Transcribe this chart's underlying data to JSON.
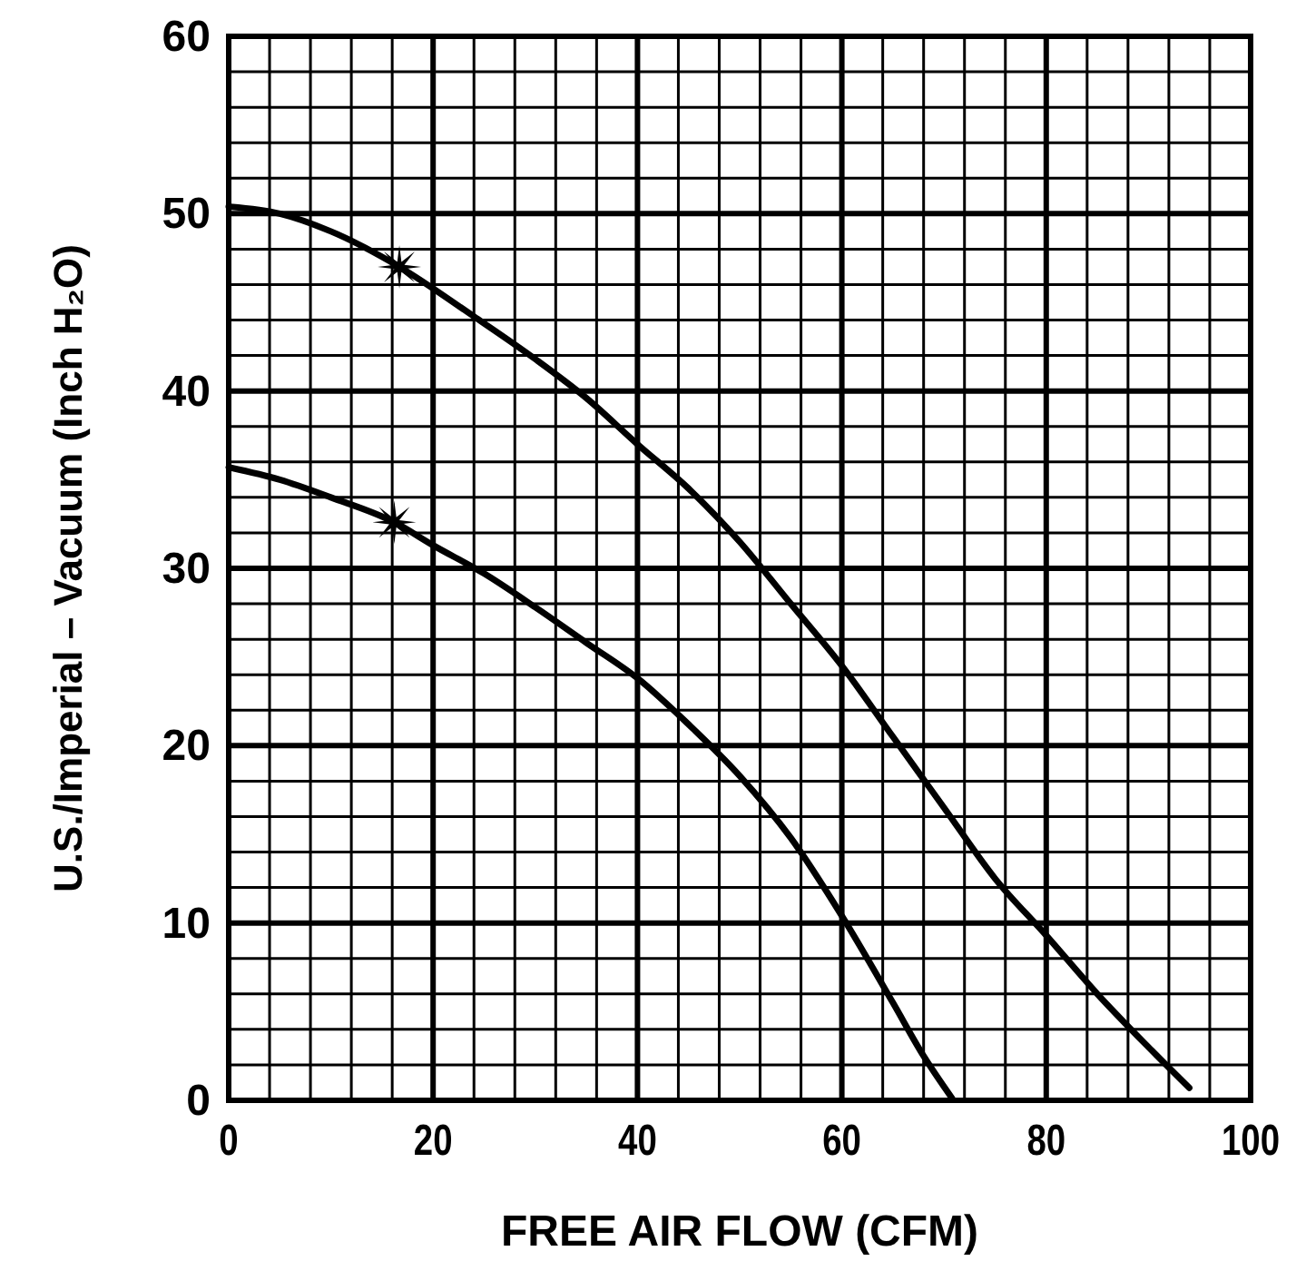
{
  "chart_data": {
    "type": "line",
    "xlabel": "FREE AIR FLOW (CFM)",
    "ylabel": "U.S./Imperial – Vacuum (Inch H₂O)",
    "xlim": [
      0,
      100
    ],
    "ylim": [
      0,
      60
    ],
    "xticks": [
      0,
      {
        "value": 4,
        "label": null
      },
      {
        "value": 8,
        "label": null
      },
      {
        "value": 12,
        "label": null
      },
      {
        "value": 16,
        "label": null
      },
      20,
      {
        "value": 24,
        "label": null
      },
      {
        "value": 28,
        "label": null
      },
      {
        "value": 32,
        "label": null
      },
      {
        "value": 36,
        "label": null
      },
      40,
      {
        "value": 44,
        "label": null
      },
      {
        "value": 48,
        "label": null
      },
      {
        "value": 52,
        "label": null
      },
      {
        "value": 56,
        "label": null
      },
      60,
      {
        "value": 64,
        "label": null
      },
      {
        "value": 68,
        "label": null
      },
      {
        "value": 72,
        "label": null
      },
      {
        "value": 76,
        "label": null
      },
      80,
      {
        "value": 84,
        "label": null
      },
      {
        "value": 88,
        "label": null
      },
      {
        "value": 92,
        "label": null
      },
      {
        "value": 96,
        "label": null
      },
      100
    ],
    "yticks": [
      0,
      {
        "value": 2,
        "label": null
      },
      {
        "value": 4,
        "label": null
      },
      {
        "value": 6,
        "label": null
      },
      {
        "value": 8,
        "label": null
      },
      10,
      {
        "value": 12,
        "label": null
      },
      {
        "value": 14,
        "label": null
      },
      {
        "value": 16,
        "label": null
      },
      {
        "value": 18,
        "label": null
      },
      20,
      {
        "value": 22,
        "label": null
      },
      {
        "value": 24,
        "label": null
      },
      {
        "value": 26,
        "label": null
      },
      {
        "value": 28,
        "label": null
      },
      30,
      {
        "value": 32,
        "label": null
      },
      {
        "value": 34,
        "label": null
      },
      {
        "value": 36,
        "label": null
      },
      {
        "value": 38,
        "label": null
      },
      40,
      {
        "value": 42,
        "label": null
      },
      {
        "value": 44,
        "label": null
      },
      {
        "value": 46,
        "label": null
      },
      {
        "value": 48,
        "label": null
      },
      50,
      {
        "value": 52,
        "label": null
      },
      {
        "value": 54,
        "label": null
      },
      {
        "value": 56,
        "label": null
      },
      {
        "value": 58,
        "label": null
      },
      60
    ],
    "grid": true,
    "line_style": "solid",
    "series": [
      {
        "color": "#000000",
        "x": [
          0,
          5,
          10,
          16.7,
          24,
          30,
          35,
          40,
          45,
          50,
          55,
          60,
          65,
          70,
          75,
          80,
          85,
          90,
          94
        ],
        "values": [
          50.4,
          50,
          49,
          47,
          44.2,
          41.8,
          39.6,
          37,
          34.5,
          31.5,
          28,
          24.5,
          20.5,
          16.5,
          12.5,
          9.3,
          6,
          3,
          0.7
        ]
      },
      {
        "color": "#000000",
        "x": [
          0,
          5,
          10,
          16.2,
          20,
          25,
          30,
          35,
          40,
          45,
          50,
          55,
          60,
          65,
          68,
          70.8
        ],
        "values": [
          35.7,
          35,
          34,
          32.6,
          31.3,
          29.7,
          27.8,
          25.8,
          23.8,
          21.2,
          18.3,
          14.8,
          10.4,
          5.5,
          2.5,
          0.1
        ]
      },
      {
        "type": "scatter",
        "marker": "star",
        "color": "#000000",
        "x": [
          16.7,
          16.2
        ],
        "values": [
          47,
          32.6
        ]
      }
    ]
  }
}
